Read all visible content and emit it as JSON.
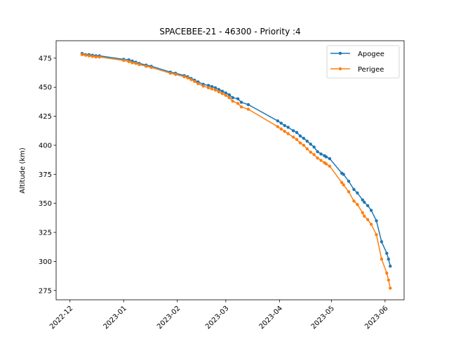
{
  "chart_data": {
    "type": "line",
    "title": "SPACEBEE-21 - 46300 - Priority :4",
    "xlabel": "",
    "ylabel": "Altitude (km)",
    "x_type": "date",
    "xlim": [
      "2022-11-23",
      "2023-06-12"
    ],
    "ylim": [
      267,
      490
    ],
    "x_ticks": [
      "2022-12-01",
      "2023-01-01",
      "2023-02-01",
      "2023-03-01",
      "2023-04-01",
      "2023-05-01",
      "2023-06-01"
    ],
    "x_tick_labels": [
      "2022-12",
      "2023-01",
      "2023-02",
      "2023-03",
      "2023-04",
      "2023-05",
      "2023-06"
    ],
    "y_ticks": [
      275,
      300,
      325,
      350,
      375,
      400,
      425,
      450,
      475
    ],
    "y_tick_labels": [
      "275",
      "300",
      "325",
      "350",
      "375",
      "400",
      "425",
      "450",
      "475"
    ],
    "grid": false,
    "legend_position": "top-right",
    "series": [
      {
        "name": "Apogee",
        "color": "#1f77b4",
        "x": [
          "2022-12-08",
          "2022-12-10",
          "2022-12-12",
          "2022-12-14",
          "2022-12-16",
          "2022-12-18",
          "2023-01-01",
          "2023-01-04",
          "2023-01-06",
          "2023-01-08",
          "2023-01-10",
          "2023-01-14",
          "2023-01-17",
          "2023-01-28",
          "2023-01-31",
          "2023-02-05",
          "2023-02-07",
          "2023-02-09",
          "2023-02-11",
          "2023-02-13",
          "2023-02-16",
          "2023-02-19",
          "2023-02-21",
          "2023-02-23",
          "2023-02-25",
          "2023-02-27",
          "2023-03-01",
          "2023-03-03",
          "2023-03-05",
          "2023-03-08",
          "2023-03-10",
          "2023-03-14",
          "2023-03-31",
          "2023-04-02",
          "2023-04-04",
          "2023-04-06",
          "2023-04-09",
          "2023-04-11",
          "2023-04-13",
          "2023-04-15",
          "2023-04-17",
          "2023-04-19",
          "2023-04-21",
          "2023-04-23",
          "2023-04-25",
          "2023-04-27",
          "2023-04-28",
          "2023-04-30",
          "2023-05-07",
          "2023-05-08",
          "2023-05-11",
          "2023-05-14",
          "2023-05-16",
          "2023-05-19",
          "2023-05-20",
          "2023-05-22",
          "2023-05-24",
          "2023-05-27",
          "2023-05-30",
          "2023-06-02",
          "2023-06-03",
          "2023-06-04"
        ],
        "y": [
          479,
          478,
          478,
          477.5,
          477,
          477,
          474,
          473.5,
          472.5,
          471.5,
          470.5,
          469,
          468,
          463,
          462,
          460,
          459,
          457.5,
          456,
          454.5,
          452.5,
          451.5,
          450.5,
          449.5,
          448,
          446.5,
          445,
          443.5,
          441,
          440,
          437,
          435,
          421,
          419,
          417,
          415.5,
          412.5,
          411,
          408,
          406,
          403.5,
          401,
          398.5,
          394.5,
          392.5,
          391,
          390,
          388.5,
          376,
          375,
          369,
          362,
          359,
          353,
          351,
          348,
          344,
          335,
          317,
          307,
          302,
          296
        ]
      },
      {
        "name": "Perigee",
        "color": "#ff7f0e",
        "x": [
          "2022-12-08",
          "2022-12-10",
          "2022-12-12",
          "2022-12-14",
          "2022-12-16",
          "2022-12-18",
          "2023-01-01",
          "2023-01-04",
          "2023-01-06",
          "2023-01-08",
          "2023-01-10",
          "2023-01-14",
          "2023-01-17",
          "2023-01-28",
          "2023-01-31",
          "2023-02-05",
          "2023-02-07",
          "2023-02-09",
          "2023-02-11",
          "2023-02-13",
          "2023-02-16",
          "2023-02-19",
          "2023-02-21",
          "2023-02-23",
          "2023-02-25",
          "2023-02-27",
          "2023-03-01",
          "2023-03-03",
          "2023-03-05",
          "2023-03-08",
          "2023-03-10",
          "2023-03-14",
          "2023-03-31",
          "2023-04-02",
          "2023-04-04",
          "2023-04-06",
          "2023-04-09",
          "2023-04-11",
          "2023-04-13",
          "2023-04-15",
          "2023-04-17",
          "2023-04-19",
          "2023-04-21",
          "2023-04-23",
          "2023-04-25",
          "2023-04-27",
          "2023-04-28",
          "2023-04-30",
          "2023-05-07",
          "2023-05-08",
          "2023-05-11",
          "2023-05-14",
          "2023-05-16",
          "2023-05-19",
          "2023-05-20",
          "2023-05-22",
          "2023-05-24",
          "2023-05-27",
          "2023-05-30",
          "2023-06-02",
          "2023-06-03",
          "2023-06-04"
        ],
        "y": [
          478,
          477.5,
          477,
          476.5,
          476,
          476,
          473,
          472,
          471,
          470.5,
          469.5,
          468,
          467,
          462,
          461,
          459,
          458,
          456.5,
          455,
          453,
          451,
          449.5,
          448.5,
          447.5,
          446,
          444.5,
          443,
          441,
          438,
          436,
          433,
          431,
          416,
          414,
          412,
          410,
          407,
          405,
          402,
          400,
          397,
          394,
          392,
          389,
          387,
          385,
          384,
          382,
          368,
          366,
          360,
          352,
          349,
          342,
          339,
          336,
          332,
          323,
          302,
          290,
          284,
          277
        ]
      }
    ]
  }
}
